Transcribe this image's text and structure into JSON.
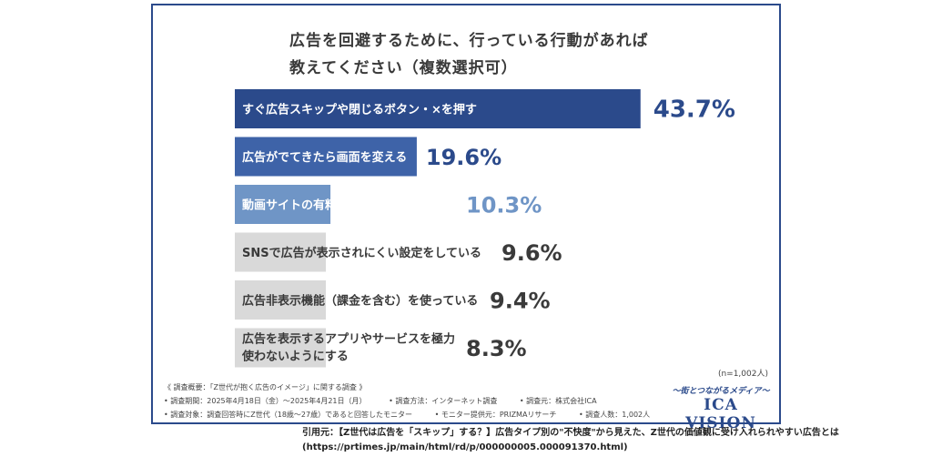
{
  "title_line1": "広告を回避するために、行っている行動があれば",
  "title_line2": "教えてください（複数選択可）",
  "chart_data": {
    "type": "bar",
    "orientation": "horizontal",
    "categories": [
      [
        "すぐ広告スキップや閉じるボタン・×を押す"
      ],
      [
        "広告がでてきたら画面を変える"
      ],
      [
        "動画サイトの有料プランに加入している"
      ],
      [
        "SNSで広告が表示されにくい設定をしている"
      ],
      [
        "広告非表示機能（課金を含む）を使っている"
      ],
      [
        "広告を表示するアプリやサービスを極力",
        "使わないようにする"
      ]
    ],
    "values": [
      43.7,
      19.6,
      10.3,
      9.6,
      9.4,
      8.3
    ],
    "value_labels": [
      "43.7%",
      "19.6%",
      "10.3%",
      "9.6%",
      "9.4%",
      "8.3%"
    ],
    "bar_colors": [
      "#2b4a8b",
      "#3e63a8",
      "#6f95c6",
      "#d9d9d9",
      "#d9d9d9",
      "#d9d9d9"
    ],
    "value_colors": [
      "#2b4a8b",
      "#2b4a8b",
      "#6f95c6",
      "#3a3a3a",
      "#3a3a3a",
      "#3a3a3a"
    ],
    "label_colors": [
      "#ffffff",
      "#ffffff",
      "#ffffff",
      "#3a3a3a",
      "#3a3a3a",
      "#3a3a3a"
    ]
  },
  "n_note": "(n=1,002人)",
  "survey": {
    "overview": "《 調査概要：「Z世代が抱く広告のイメージ」に関する調査 》",
    "period": "• 調査期間：2025年4月18日（金）〜2025年4月21日（月）",
    "method": "• 調査方法：インターネット調査",
    "source": "• 調査元：株式会社ICA",
    "target": "• 調査対象：調査回答時にZ世代（18歳〜27歳）であると回答したモニター",
    "provider": "• モニター提供元：PRIZMAリサーチ",
    "count": "• 調査人数：1,002人"
  },
  "logo": {
    "tagline": "〜街とつながるメディア〜",
    "brand": "ICA VISION"
  },
  "citation": {
    "line1": "引用元：【Z世代は広告を「スキップ」する？】広告タイプ別の\"不快度\"から見えた、Z世代の価値観に受け入れられやすい広告とは",
    "line2": "(https://prtimes.jp/main/html/rd/p/000000005.000091370.html)"
  },
  "colors": {
    "accent": "#2b4a8b",
    "frame": "#2b4a8b"
  }
}
